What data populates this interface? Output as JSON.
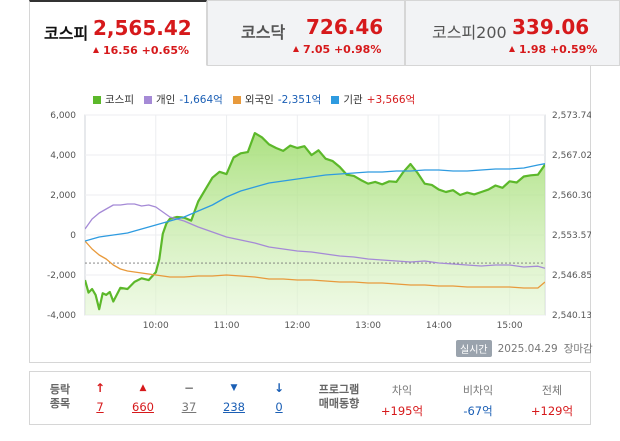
{
  "tabs": [
    {
      "name": "코스피",
      "price": "2,565.42",
      "change": "16.56 +0.65%",
      "active": true
    },
    {
      "name": "코스닥",
      "price": "726.46",
      "change": "7.05 +0.98%",
      "active": false
    },
    {
      "name": "코스피200",
      "price": "339.06",
      "change": "1.98 +0.59%",
      "active": false
    }
  ],
  "legend": [
    {
      "label": "코스피",
      "value": "",
      "color": "#5cb82a"
    },
    {
      "label": "개인",
      "value": "-1,664억",
      "color": "#a58ad6"
    },
    {
      "label": "외국인",
      "value": "-2,351억",
      "color": "#e89a3c"
    },
    {
      "label": "기관",
      "value": "+3,566억",
      "color": "#2e9be0"
    }
  ],
  "chart_data": {
    "type": "line",
    "x_ticks": [
      "10:00",
      "11:00",
      "12:00",
      "13:00",
      "14:00",
      "15:00"
    ],
    "y_left_ticks": [
      "6,000",
      "4,000",
      "2,000",
      "0",
      "-2,000",
      "-4,000"
    ],
    "y_left_range": [
      -4000,
      6000
    ],
    "y_right_ticks": [
      "2,573.74",
      "2,567.02",
      "2,560.30",
      "2,553.57",
      "2,546.85",
      "2,540.13"
    ],
    "y_right_range": [
      2540.13,
      2573.74
    ],
    "x_range_hours": [
      9.0,
      15.5
    ],
    "series": [
      {
        "name": "코스피",
        "axis": "right",
        "color": "#5cb82a",
        "x": [
          9.0,
          9.05,
          9.1,
          9.15,
          9.2,
          9.25,
          9.3,
          9.35,
          9.4,
          9.5,
          9.6,
          9.7,
          9.8,
          9.9,
          10.0,
          10.05,
          10.1,
          10.15,
          10.2,
          10.3,
          10.4,
          10.5,
          10.6,
          10.7,
          10.8,
          10.9,
          11.0,
          11.1,
          11.2,
          11.3,
          11.4,
          11.5,
          11.6,
          11.7,
          11.8,
          11.9,
          12.0,
          12.1,
          12.2,
          12.3,
          12.4,
          12.5,
          12.6,
          12.7,
          12.8,
          12.9,
          13.0,
          13.1,
          13.2,
          13.3,
          13.4,
          13.5,
          13.6,
          13.7,
          13.8,
          13.9,
          14.0,
          14.1,
          14.2,
          14.3,
          14.4,
          14.5,
          14.6,
          14.7,
          14.8,
          14.9,
          15.0,
          15.1,
          15.2,
          15.3,
          15.4,
          15.5
        ],
        "y": [
          2546.0,
          2543.9,
          2544.5,
          2543.5,
          2541.1,
          2543.8,
          2543.5,
          2544.0,
          2542.4,
          2544.7,
          2544.5,
          2545.7,
          2546.3,
          2546.0,
          2547.3,
          2549.5,
          2553.8,
          2555.5,
          2556.3,
          2556.6,
          2556.5,
          2556.0,
          2559.2,
          2561.2,
          2563.2,
          2564.2,
          2563.8,
          2566.6,
          2567.3,
          2567.5,
          2570.7,
          2570.0,
          2568.8,
          2568.2,
          2567.7,
          2568.6,
          2568.2,
          2568.5,
          2567.0,
          2567.8,
          2566.4,
          2566.0,
          2565.0,
          2563.7,
          2563.5,
          2562.8,
          2562.2,
          2562.5,
          2562.1,
          2562.6,
          2562.5,
          2564.2,
          2565.5,
          2564.0,
          2562.2,
          2562.0,
          2561.2,
          2560.8,
          2561.1,
          2560.3,
          2560.7,
          2560.4,
          2560.8,
          2561.2,
          2561.9,
          2561.5,
          2562.6,
          2562.4,
          2563.4,
          2563.6,
          2563.7,
          2565.4
        ]
      },
      {
        "name": "개인",
        "axis": "left",
        "color": "#a58ad6",
        "x": [
          9.0,
          9.1,
          9.2,
          9.3,
          9.4,
          9.5,
          9.6,
          9.7,
          9.8,
          9.9,
          10.0,
          10.2,
          10.4,
          10.6,
          10.8,
          11.0,
          11.2,
          11.4,
          11.6,
          11.8,
          12.0,
          12.2,
          12.4,
          12.6,
          12.8,
          13.0,
          13.2,
          13.4,
          13.6,
          13.8,
          14.0,
          14.2,
          14.4,
          14.6,
          14.8,
          15.0,
          15.2,
          15.4,
          15.5
        ],
        "y": [
          300,
          800,
          1100,
          1300,
          1500,
          1500,
          1550,
          1550,
          1450,
          1500,
          1400,
          900,
          700,
          400,
          150,
          -100,
          -250,
          -400,
          -600,
          -700,
          -800,
          -850,
          -950,
          -1050,
          -1100,
          -1200,
          -1250,
          -1300,
          -1350,
          -1300,
          -1400,
          -1450,
          -1500,
          -1550,
          -1500,
          -1500,
          -1600,
          -1560,
          -1664
        ]
      },
      {
        "name": "외국인",
        "axis": "left",
        "color": "#e89a3c",
        "x": [
          9.0,
          9.1,
          9.2,
          9.3,
          9.4,
          9.5,
          9.6,
          9.7,
          9.8,
          9.9,
          10.0,
          10.2,
          10.4,
          10.6,
          10.8,
          11.0,
          11.2,
          11.4,
          11.6,
          11.8,
          12.0,
          12.2,
          12.4,
          12.6,
          12.8,
          13.0,
          13.2,
          13.4,
          13.6,
          13.8,
          14.0,
          14.2,
          14.4,
          14.6,
          14.8,
          15.0,
          15.2,
          15.4,
          15.5
        ],
        "y": [
          -300,
          -700,
          -1000,
          -1200,
          -1500,
          -1700,
          -1800,
          -1850,
          -1900,
          -1950,
          -2000,
          -2100,
          -2100,
          -2050,
          -2050,
          -2000,
          -2050,
          -2100,
          -2200,
          -2200,
          -2250,
          -2250,
          -2300,
          -2350,
          -2350,
          -2400,
          -2400,
          -2450,
          -2500,
          -2500,
          -2550,
          -2550,
          -2600,
          -2600,
          -2600,
          -2600,
          -2650,
          -2650,
          -2351
        ]
      },
      {
        "name": "기관",
        "axis": "left",
        "color": "#2e9be0",
        "x": [
          9.0,
          9.1,
          9.2,
          9.3,
          9.4,
          9.5,
          9.6,
          9.7,
          9.8,
          9.9,
          10.0,
          10.2,
          10.4,
          10.6,
          10.8,
          11.0,
          11.2,
          11.4,
          11.6,
          11.8,
          12.0,
          12.2,
          12.4,
          12.6,
          12.8,
          13.0,
          13.2,
          13.4,
          13.6,
          13.8,
          14.0,
          14.2,
          14.4,
          14.6,
          14.8,
          15.0,
          15.2,
          15.4,
          15.5
        ],
        "y": [
          -300,
          -200,
          -100,
          -50,
          0,
          50,
          100,
          200,
          300,
          400,
          500,
          700,
          900,
          1200,
          1500,
          1900,
          2200,
          2400,
          2600,
          2700,
          2800,
          2900,
          3000,
          3050,
          3100,
          3150,
          3150,
          3200,
          3200,
          3250,
          3250,
          3200,
          3200,
          3250,
          3300,
          3300,
          3350,
          3500,
          3566
        ]
      }
    ],
    "baseline_right": 2548.86
  },
  "stamp": {
    "badge": "실시간",
    "date": "2025.04.29",
    "status": "장마감"
  },
  "breadth": {
    "label_line1": "등락",
    "label_line2": "종목",
    "items": [
      {
        "icon": "↑",
        "value": "7",
        "color": "#d6191b"
      },
      {
        "icon": "▲",
        "value": "660",
        "color": "#d6191b"
      },
      {
        "icon": "−",
        "value": "37",
        "color": "#777777"
      },
      {
        "icon": "▼",
        "value": "238",
        "color": "#1b5fb5"
      },
      {
        "icon": "↓",
        "value": "0",
        "color": "#1b5fb5"
      }
    ]
  },
  "program": {
    "label_line1": "프로그램",
    "label_line2": "매매동향",
    "columns": [
      {
        "header": "차익",
        "value": "+195억",
        "color": "#d6191b"
      },
      {
        "header": "비차익",
        "value": "-67억",
        "color": "#1b5fb5"
      },
      {
        "header": "전체",
        "value": "+129억",
        "color": "#d6191b"
      }
    ]
  }
}
